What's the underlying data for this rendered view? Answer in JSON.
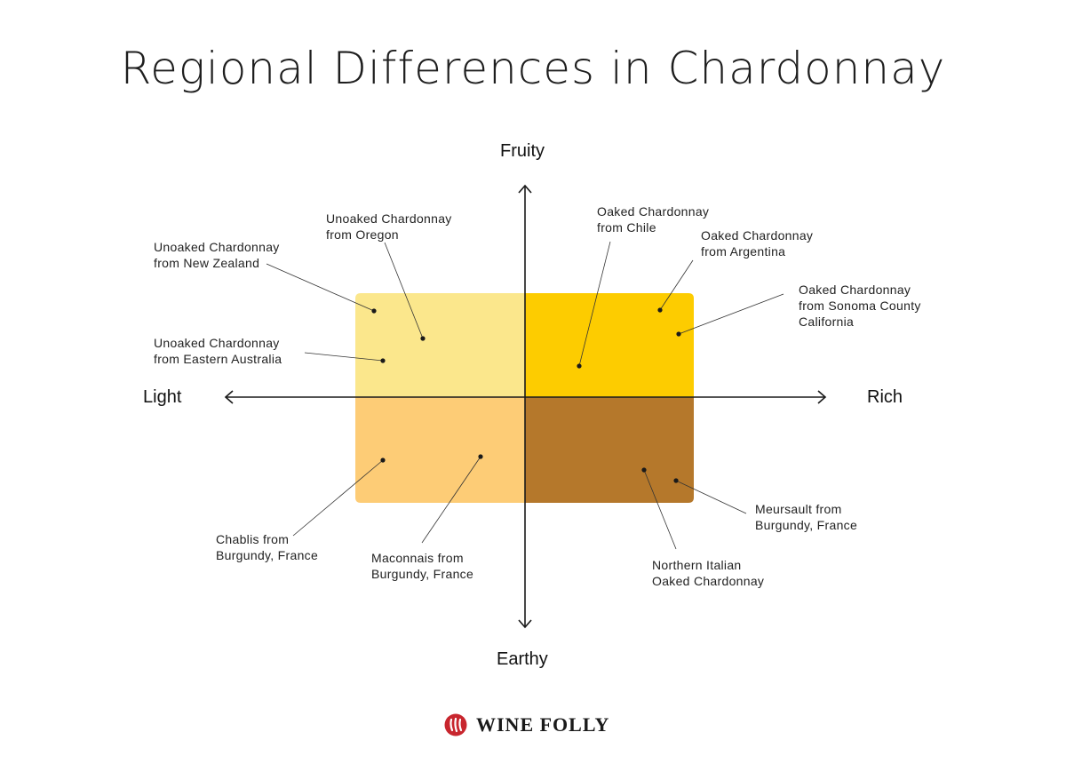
{
  "title": "Regional Differences in Chardonnay",
  "axes": {
    "top": "Fruity",
    "bottom": "Earthy",
    "left": "Light",
    "right": "Rich"
  },
  "colors": {
    "q_top_left": "#FBE78C",
    "q_top_right": "#FDCC00",
    "q_bottom_left": "#FDCC76",
    "q_bottom_right": "#B5782B",
    "brand_red": "#C8262E"
  },
  "labels": {
    "nz": [
      "Unoaked Chardonnay",
      "from New Zealand"
    ],
    "oregon": [
      "Unoaked Chardonnay",
      "from Oregon"
    ],
    "eastern_australia": [
      "Unoaked Chardonnay",
      "from Eastern Australia"
    ],
    "chile": [
      "Oaked Chardonnay",
      "from Chile"
    ],
    "argentina": [
      "Oaked Chardonnay",
      "from Argentina"
    ],
    "sonoma": [
      "Oaked Chardonnay",
      "from Sonoma County",
      "California"
    ],
    "chablis": [
      "Chablis from",
      "Burgundy, France"
    ],
    "maconnais": [
      "Maconnais from",
      "Burgundy, France"
    ],
    "northern_italian": [
      "Northern Italian",
      "Oaked Chardonnay"
    ],
    "meursault": [
      "Meursault from",
      "Burgundy, France"
    ]
  },
  "brand": {
    "name": "WINE FOLLY",
    "icon": "wine-folly-logo-icon"
  }
}
